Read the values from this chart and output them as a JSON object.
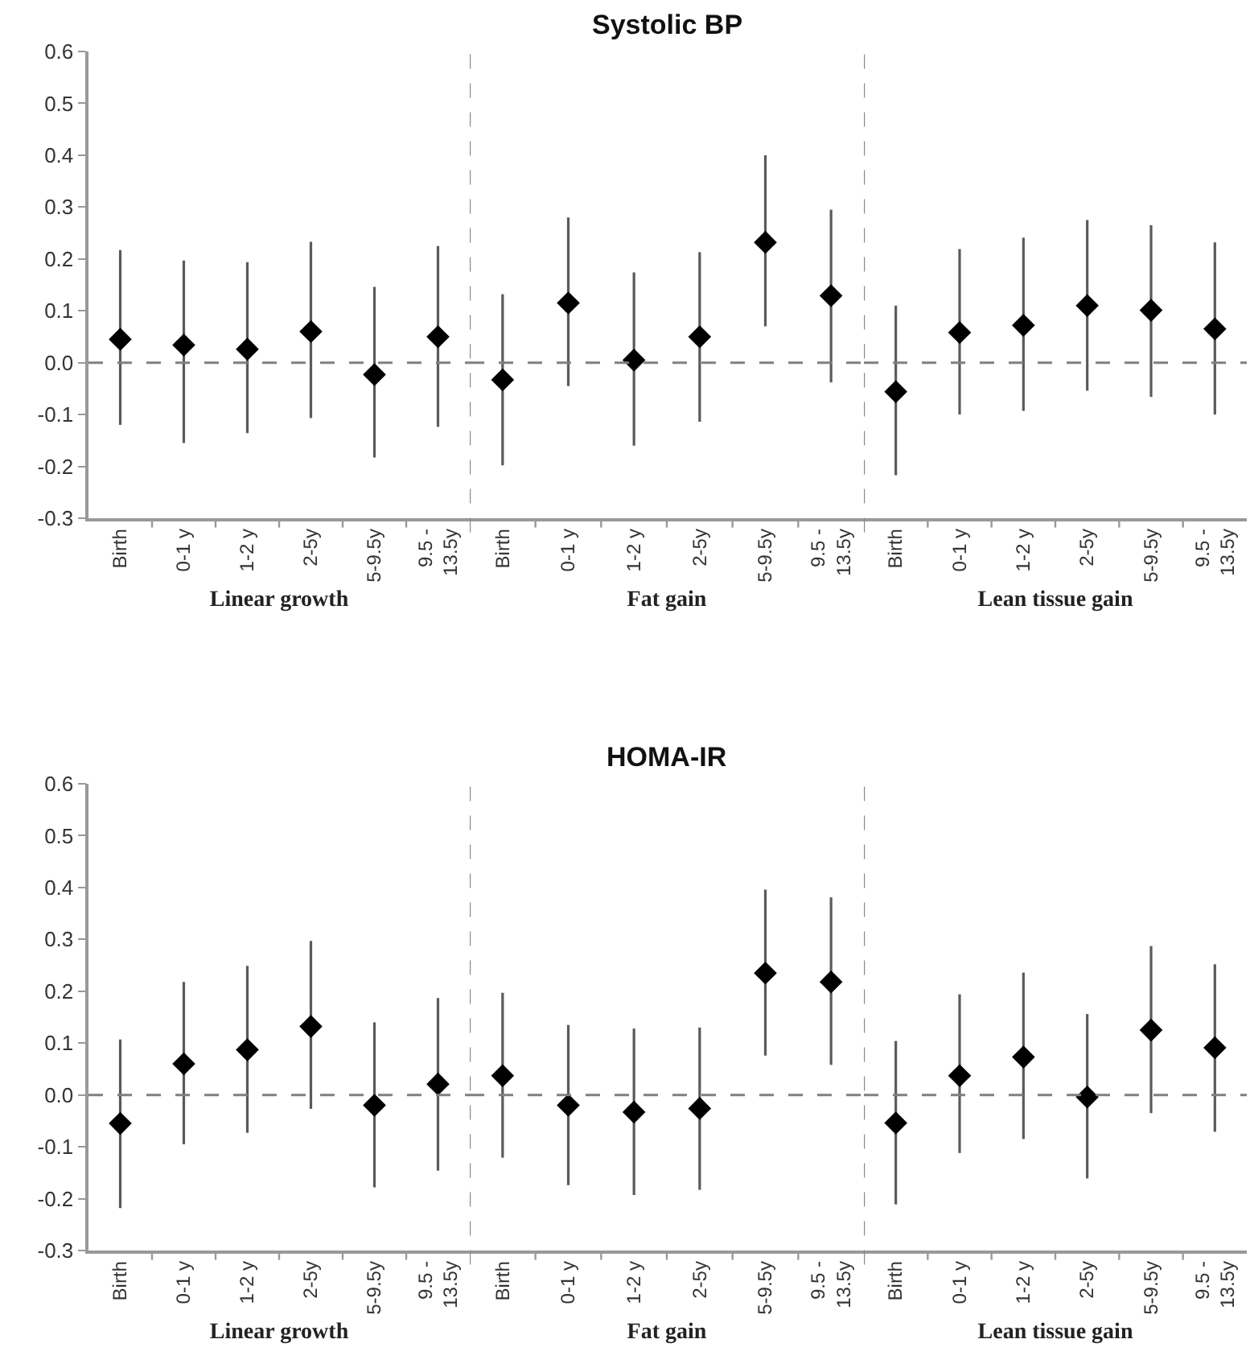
{
  "chart_data": [
    {
      "type": "scatter",
      "categories": [
        "Birth",
        "0-1 y",
        "1-2 y",
        "2-5y",
        "5-9.5y",
        "9.5 - 13.5y"
      ],
      "xlabel": "Linear growth",
      "ylim": [
        -0.3,
        0.6
      ],
      "yticks": [
        -0.3,
        -0.2,
        -0.1,
        {
          "value": 0,
          "label": "0.0"
        },
        0.1,
        0.2,
        0.3,
        0.4,
        0.5,
        0.6
      ],
      "marker": "diamond",
      "series": [
        {
          "color": "#000000",
          "values": [
            0.045,
            0.034,
            0.026,
            0.06,
            -0.023,
            0.05
          ],
          "errors": [
            [
              -0.12,
              0.217
            ],
            [
              -0.155,
              0.197
            ],
            [
              -0.136,
              0.194
            ],
            [
              -0.107,
              0.233
            ],
            [
              -0.183,
              0.146
            ],
            [
              -0.124,
              0.225
            ]
          ]
        }
      ],
      "ref_lines": [
        {
          "axis": "y",
          "value": 0,
          "color": "#808080",
          "line_style": "dashed"
        }
      ]
    },
    {
      "type": "scatter",
      "title": "Systolic BP",
      "categories": [
        "Birth",
        "0-1 y",
        "1-2 y",
        "2-5y",
        "5-9.5y",
        "9.5 - 13.5y"
      ],
      "xlabel": "Fat gain",
      "ylim": [
        -0.3,
        0.6
      ],
      "tick_labels": "x",
      "marker": "diamond",
      "series": [
        {
          "color": "#000000",
          "values": [
            -0.033,
            0.115,
            0.005,
            0.05,
            0.232,
            0.129
          ],
          "errors": [
            [
              -0.198,
              0.132
            ],
            [
              -0.045,
              0.28
            ],
            [
              -0.16,
              0.174
            ],
            [
              -0.114,
              0.213
            ],
            [
              0.07,
              0.4
            ],
            [
              -0.038,
              0.295
            ]
          ]
        }
      ],
      "ref_lines": [
        {
          "axis": "y",
          "value": 0,
          "color": "#808080",
          "line_style": "dashed"
        }
      ]
    },
    {
      "type": "scatter",
      "categories": [
        "Birth",
        "0-1 y",
        "1-2 y",
        "2-5y",
        "5-9.5y",
        "9.5 - 13.5y"
      ],
      "xlabel": "Lean tissue gain",
      "ylim": [
        -0.3,
        0.6
      ],
      "tick_labels": "x",
      "marker": "diamond",
      "series": [
        {
          "color": "#000000",
          "values": [
            -0.056,
            0.058,
            0.072,
            0.11,
            0.101,
            0.065
          ],
          "errors": [
            [
              -0.217,
              0.11
            ],
            [
              -0.1,
              0.219
            ],
            [
              -0.093,
              0.241
            ],
            [
              -0.054,
              0.275
            ],
            [
              -0.066,
              0.265
            ],
            [
              -0.1,
              0.232
            ]
          ]
        }
      ],
      "ref_lines": [
        {
          "axis": "y",
          "value": 0,
          "color": "#808080",
          "line_style": "dashed"
        }
      ]
    },
    {
      "type": "scatter",
      "categories": [
        "Birth",
        "0-1 y",
        "1-2 y",
        "2-5y",
        "5-9.5y",
        "9.5 - 13.5y"
      ],
      "xlabel": "Linear growth",
      "ylim": [
        -0.3,
        0.6
      ],
      "yticks": [
        -0.3,
        -0.2,
        -0.1,
        {
          "value": 0,
          "label": "0.0"
        },
        0.1,
        0.2,
        0.3,
        0.4,
        0.5,
        0.6
      ],
      "marker": "diamond",
      "series": [
        {
          "color": "#000000",
          "values": [
            -0.055,
            0.06,
            0.087,
            0.132,
            -0.02,
            0.021
          ],
          "errors": [
            [
              -0.218,
              0.107
            ],
            [
              -0.095,
              0.218
            ],
            [
              -0.073,
              0.249
            ],
            [
              -0.027,
              0.297
            ],
            [
              -0.178,
              0.14
            ],
            [
              -0.146,
              0.187
            ]
          ]
        }
      ],
      "ref_lines": [
        {
          "axis": "y",
          "value": 0,
          "color": "#808080",
          "line_style": "dashed"
        }
      ]
    },
    {
      "type": "scatter",
      "title": "HOMA-IR",
      "categories": [
        "Birth",
        "0-1 y",
        "1-2 y",
        "2-5y",
        "5-9.5y",
        "9.5 - 13.5y"
      ],
      "xlabel": "Fat gain",
      "ylim": [
        -0.3,
        0.6
      ],
      "tick_labels": "x",
      "marker": "diamond",
      "series": [
        {
          "color": "#000000",
          "values": [
            0.037,
            -0.02,
            -0.033,
            -0.026,
            0.235,
            0.218
          ],
          "errors": [
            [
              -0.121,
              0.197
            ],
            [
              -0.174,
              0.135
            ],
            [
              -0.193,
              0.128
            ],
            [
              -0.183,
              0.13
            ],
            [
              0.076,
              0.396
            ],
            [
              0.058,
              0.381
            ]
          ]
        }
      ],
      "ref_lines": [
        {
          "axis": "y",
          "value": 0,
          "color": "#808080",
          "line_style": "dashed"
        }
      ]
    },
    {
      "type": "scatter",
      "categories": [
        "Birth",
        "0-1 y",
        "1-2 y",
        "2-5y",
        "5-9.5y",
        "9.5 - 13.5y"
      ],
      "xlabel": "Lean tissue gain",
      "ylim": [
        -0.3,
        0.6
      ],
      "tick_labels": "x",
      "marker": "diamond",
      "series": [
        {
          "color": "#000000",
          "values": [
            -0.054,
            0.037,
            0.073,
            -0.004,
            0.125,
            0.091
          ],
          "errors": [
            [
              -0.211,
              0.104
            ],
            [
              -0.112,
              0.194
            ],
            [
              -0.085,
              0.236
            ],
            [
              -0.161,
              0.156
            ],
            [
              -0.035,
              0.287
            ],
            [
              -0.071,
              0.252
            ]
          ]
        }
      ],
      "ref_lines": [
        {
          "axis": "y",
          "value": 0,
          "color": "#808080",
          "line_style": "dashed"
        }
      ]
    }
  ]
}
